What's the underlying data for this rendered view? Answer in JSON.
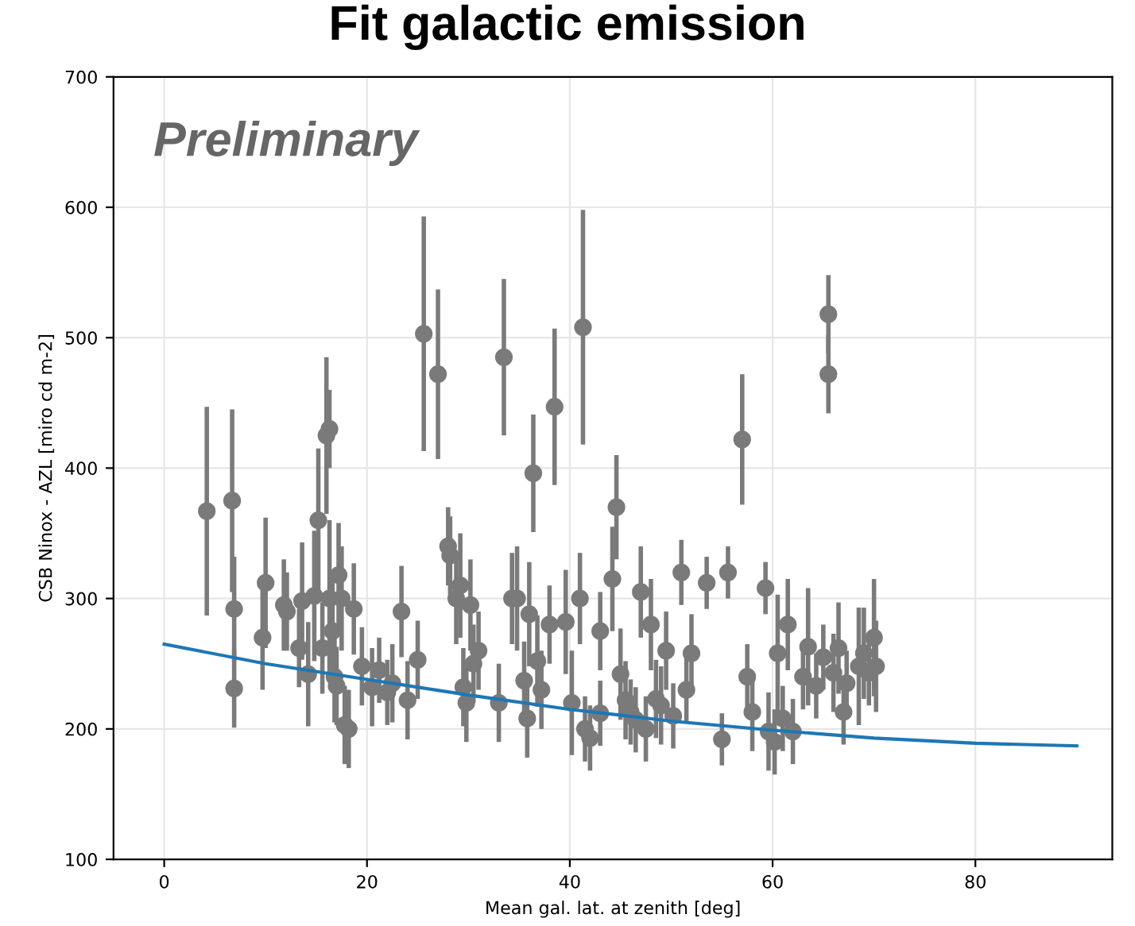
{
  "chart_data": {
    "type": "scatter",
    "title": "Fit galactic emission",
    "xlabel": "Mean gal. lat. at zenith [deg]",
    "ylabel": "CSB Ninox - AZL [miro cd m-2]",
    "annotations": [
      "Preliminary"
    ],
    "xlim": [
      -5,
      93.5
    ],
    "ylim": [
      100,
      700
    ],
    "xticks": [
      0,
      20,
      40,
      60,
      80
    ],
    "yticks": [
      100,
      200,
      300,
      400,
      500,
      600,
      700
    ],
    "grid": true,
    "marker": "circle",
    "series": [
      {
        "color": "#7a7a7a",
        "x": [
          4.2,
          6.7,
          6.9,
          6.9,
          9.7,
          10,
          11.8,
          12.1,
          13.3,
          13.6,
          14.2,
          14.8,
          15.2,
          15.6,
          16,
          16.3,
          16.3,
          16.6,
          16.8,
          17,
          17.2,
          17.5,
          17.8,
          18.2,
          18.7,
          19.5,
          20.5,
          21.2,
          22,
          22.5,
          23.4,
          24,
          25.6,
          25,
          27,
          28,
          28.2,
          28.8,
          29.2,
          29.5,
          29.8,
          30.2,
          30.5,
          31,
          33,
          33.5,
          34.3,
          34.8,
          35.5,
          35.8,
          36,
          36.4,
          36.8,
          37.2,
          38,
          38.5,
          39.6,
          40.2,
          41,
          41.3,
          41.5,
          42,
          43,
          43,
          44.2,
          44.6,
          45,
          45.5,
          46,
          46.5,
          47,
          47.5,
          48,
          48.5,
          49,
          49.5,
          50.2,
          51,
          51.5,
          52,
          53.5,
          55,
          55.6,
          57,
          57.5,
          58,
          59.3,
          59.6,
          60.2,
          60.5,
          61,
          61.5,
          62,
          63,
          63.5,
          64.3,
          65,
          65.5,
          65.5,
          66,
          66.5,
          67,
          67.3,
          68.5,
          69,
          69.5,
          70,
          70.2
        ],
        "values": [
          367,
          375,
          292,
          231,
          270,
          312,
          295,
          290,
          262,
          298,
          242,
          302,
          360,
          262,
          425,
          430,
          300,
          275,
          240,
          233,
          318,
          300,
          203,
          200,
          292,
          248,
          232,
          245,
          228,
          235,
          290,
          222,
          503,
          253,
          472,
          340,
          333,
          300,
          310,
          232,
          220,
          295,
          250,
          260,
          220,
          485,
          300,
          300,
          237,
          208,
          288,
          396,
          252,
          230,
          280,
          447,
          282,
          220,
          300,
          508,
          200,
          193,
          275,
          212,
          315,
          370,
          242,
          222,
          213,
          207,
          305,
          200,
          280,
          223,
          218,
          260,
          210,
          320,
          230,
          258,
          312,
          192,
          320,
          422,
          240,
          213,
          308,
          198,
          190,
          258,
          208,
          280,
          198,
          240,
          263,
          233,
          255,
          518,
          472,
          243,
          262,
          213,
          235,
          248,
          258,
          243,
          270,
          248
        ],
        "errors": [
          80,
          70,
          40,
          30,
          40,
          50,
          35,
          30,
          30,
          45,
          40,
          50,
          55,
          35,
          60,
          30,
          60,
          40,
          35,
          30,
          40,
          40,
          30,
          30,
          35,
          30,
          30,
          25,
          25,
          30,
          35,
          30,
          90,
          30,
          65,
          30,
          30,
          35,
          40,
          30,
          30,
          35,
          30,
          30,
          30,
          60,
          35,
          40,
          30,
          30,
          40,
          45,
          35,
          30,
          30,
          60,
          40,
          40,
          35,
          90,
          25,
          25,
          30,
          25,
          40,
          40,
          35,
          30,
          25,
          25,
          35,
          25,
          35,
          30,
          30,
          30,
          25,
          25,
          25,
          30,
          20,
          20,
          20,
          50,
          25,
          30,
          20,
          30,
          25,
          45,
          25,
          35,
          25,
          25,
          45,
          25,
          25,
          30,
          30,
          30,
          35,
          25,
          25,
          45,
          35,
          25,
          45,
          35
        ]
      },
      {
        "type": "line",
        "color": "#1f77b4",
        "marker": "none",
        "line_style": "solid",
        "x": [
          0,
          10,
          20,
          30,
          40,
          50,
          60,
          70,
          80,
          90
        ],
        "values": [
          265,
          250,
          238,
          226,
          215,
          206,
          199,
          193,
          189,
          187
        ]
      }
    ]
  }
}
